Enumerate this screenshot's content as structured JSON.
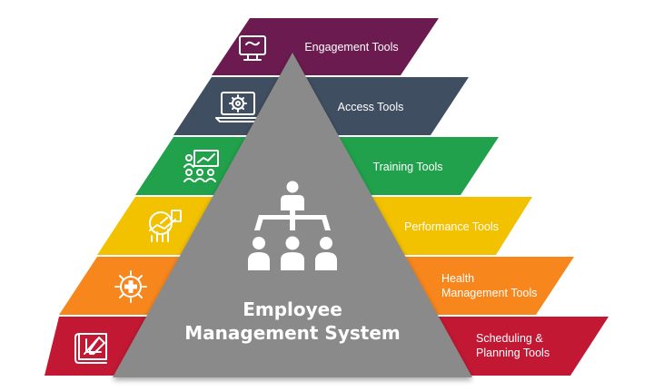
{
  "tiers": [
    {
      "label_lines": [
        "Engagement Tools"
      ],
      "icon": "monitor-handshake-icon",
      "color": "#6B1B4F"
    },
    {
      "label_lines": [
        "Access Tools"
      ],
      "icon": "laptop-gear-icon",
      "color": "#3F4E60"
    },
    {
      "label_lines": [
        "Training Tools"
      ],
      "icon": "presentation-audience-icon",
      "color": "#21A14B"
    },
    {
      "label_lines": [
        "Performance Tools"
      ],
      "icon": "performance-gauge-chart-icon",
      "color": "#F2C100"
    },
    {
      "label_lines": [
        "Health",
        "Management Tools"
      ],
      "icon": "gear-medical-cross-icon",
      "color": "#F7861D"
    },
    {
      "label_lines": [
        "Scheduling &",
        "Planning Tools"
      ],
      "icon": "planning-blueprint-icon",
      "color": "#C21833"
    }
  ],
  "center": {
    "title_lines": [
      "Employee",
      "Management System"
    ],
    "icon": "org-chart-people-icon",
    "color": "#8A8A8A"
  }
}
